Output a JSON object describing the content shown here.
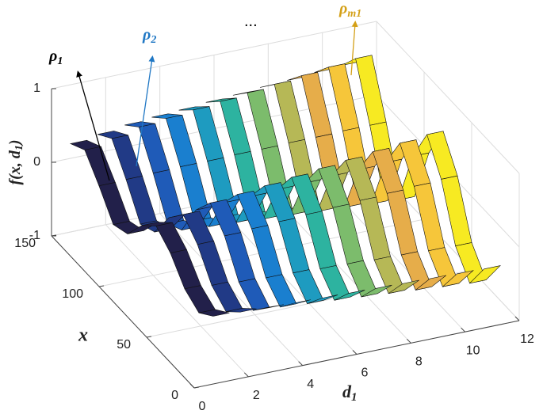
{
  "chart_data": {
    "type": "ribbon3d",
    "z_label": {
      "before": "f(x, d",
      "subscript": "1",
      "after": ")"
    },
    "x_label": "x",
    "d1_label": {
      "symbol": "d",
      "subscript": "1"
    },
    "annotations": [
      {
        "symbol": "ρ",
        "subscript": "1",
        "color": "#000000"
      },
      {
        "symbol": "ρ",
        "subscript": "2",
        "color": "#1f77c4"
      },
      {
        "symbol": "...",
        "subscript": "",
        "color": "#000000"
      },
      {
        "symbol": "ρ",
        "subscript": "m1",
        "color": "#d4a017"
      }
    ],
    "x": [
      0,
      15,
      30,
      45,
      60,
      75,
      90,
      105,
      120,
      135,
      150
    ],
    "xlim": [
      0,
      150
    ],
    "xticks": [
      0,
      50,
      100,
      150
    ],
    "d1lim": [
      0,
      12
    ],
    "d1ticks": [
      0,
      2,
      4,
      6,
      8,
      10,
      12
    ],
    "zlim": [
      -1,
      1
    ],
    "zticks": [
      -1,
      0,
      1
    ],
    "grid": true,
    "series": [
      {
        "d1": 1,
        "color": "#22204a",
        "values": [
          -0.08,
          -0.24,
          -0.12,
          0.16,
          0.32,
          0.12,
          -0.2,
          -0.28,
          0.04,
          0.32,
          0.2
        ]
      },
      {
        "d1": 2,
        "color": "#213a86",
        "values": [
          -0.1,
          -0.3,
          -0.15,
          0.2,
          0.4,
          0.15,
          -0.25,
          -0.35,
          0.05,
          0.4,
          0.25
        ]
      },
      {
        "d1": 3,
        "color": "#1f5bb8",
        "values": [
          -0.12,
          -0.36,
          -0.18,
          0.24,
          0.48,
          0.18,
          -0.3,
          -0.42,
          0.06,
          0.48,
          0.3
        ]
      },
      {
        "d1": 4,
        "color": "#1a7fcf",
        "values": [
          -0.13,
          -0.39,
          -0.2,
          0.26,
          0.52,
          0.2,
          -0.33,
          -0.46,
          0.07,
          0.52,
          0.33
        ]
      },
      {
        "d1": 5,
        "color": "#1e9bc0",
        "values": [
          -0.14,
          -0.42,
          -0.21,
          0.28,
          0.56,
          0.21,
          -0.35,
          -0.49,
          0.07,
          0.56,
          0.35
        ]
      },
      {
        "d1": 6,
        "color": "#2db3a0",
        "values": [
          -0.15,
          -0.45,
          -0.23,
          0.3,
          0.6,
          0.23,
          -0.38,
          -0.53,
          0.08,
          0.6,
          0.38
        ]
      },
      {
        "d1": 7,
        "color": "#7cbc6c",
        "values": [
          -0.16,
          -0.48,
          -0.24,
          0.32,
          0.64,
          0.24,
          -0.4,
          -0.56,
          0.08,
          0.64,
          0.4
        ]
      },
      {
        "d1": 8,
        "color": "#b6b856",
        "values": [
          -0.17,
          -0.51,
          -0.26,
          0.34,
          0.68,
          0.26,
          -0.43,
          -0.6,
          0.09,
          0.68,
          0.43
        ]
      },
      {
        "d1": 9,
        "color": "#e6ad4a",
        "values": [
          -0.18,
          -0.54,
          -0.27,
          0.36,
          0.72,
          0.27,
          -0.45,
          -0.63,
          0.09,
          0.72,
          0.45
        ]
      },
      {
        "d1": 10,
        "color": "#f6c63a",
        "values": [
          -0.19,
          -0.57,
          -0.29,
          0.38,
          0.76,
          0.29,
          -0.48,
          -0.67,
          0.1,
          0.76,
          0.48
        ]
      },
      {
        "d1": 11,
        "color": "#f7ea22",
        "values": [
          -0.2,
          -0.6,
          -0.3,
          0.4,
          0.8,
          0.3,
          -0.5,
          -0.7,
          0.1,
          0.8,
          0.5
        ]
      }
    ]
  }
}
